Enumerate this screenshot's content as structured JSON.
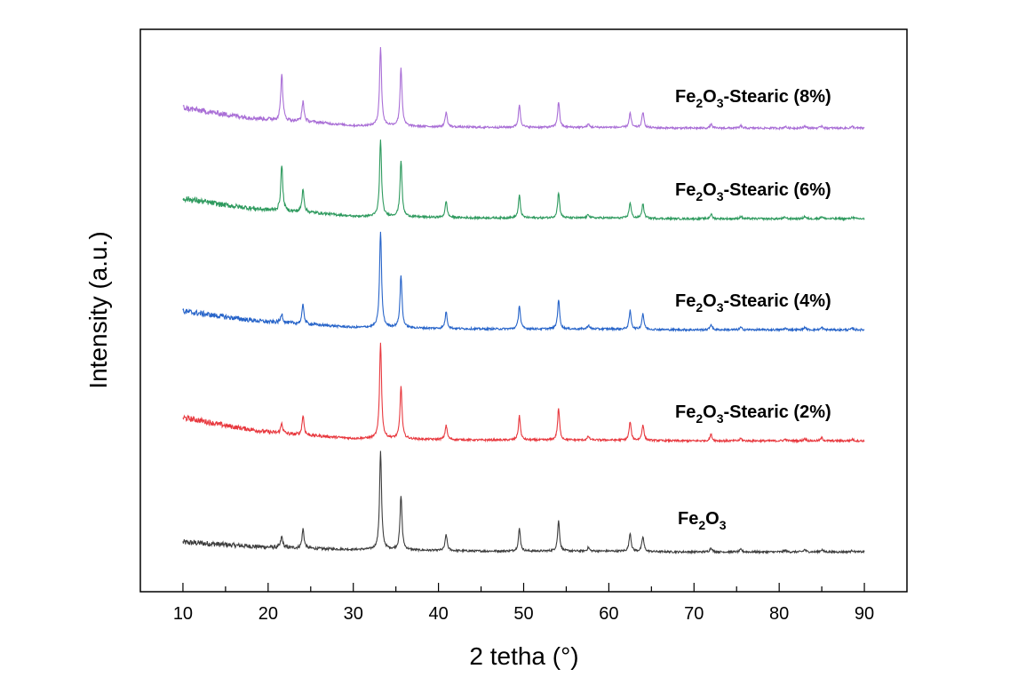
{
  "chart_data": {
    "type": "line",
    "xlabel": "2 tetha (°)",
    "ylabel": "Intensity (a.u.)",
    "xlim": [
      5,
      95
    ],
    "xticks": [
      10,
      20,
      30,
      40,
      50,
      60,
      70,
      80,
      90
    ],
    "yticks_shown": false,
    "grid": false,
    "legend": "inline-labels-right",
    "peak_positions": [
      21.6,
      24.1,
      33.2,
      35.6,
      40.9,
      49.5,
      54.1,
      57.6,
      62.5,
      64.0,
      72.0,
      75.5,
      80.7,
      83.0,
      85.0,
      88.6
    ],
    "series": [
      {
        "label": {
          "base": "Fe",
          "sub1": "2",
          "mid": "O",
          "sub2": "3",
          "suffix": ""
        },
        "color": "#3d3d3d",
        "x": [
          10,
          12,
          15,
          18,
          20,
          21.6,
          23,
          24.1,
          26,
          30,
          32.5,
          33.2,
          34.4,
          35.6,
          38,
          40.9,
          45,
          49.5,
          52,
          54.1,
          57.6,
          60,
          62.5,
          64.0,
          68,
          72.0,
          75.5,
          80.7,
          83.0,
          85.0,
          88.6,
          90
        ],
        "y": [
          0.28,
          0.26,
          0.22,
          0.18,
          0.16,
          0.42,
          0.14,
          0.62,
          0.12,
          0.1,
          0.1,
          2.55,
          0.1,
          1.45,
          0.08,
          0.48,
          0.06,
          0.62,
          0.06,
          0.82,
          0.15,
          0.06,
          0.52,
          0.42,
          0.04,
          0.15,
          0.1,
          0.08,
          0.1,
          0.1,
          0.08,
          0.04
        ]
      },
      {
        "label": {
          "base": "Fe",
          "sub1": "2",
          "mid": "O",
          "sub2": "3",
          "suffix": "-Stearic (2%)"
        },
        "color": "#e8393f",
        "x": [
          10,
          12,
          15,
          18,
          20,
          21.6,
          23,
          24.1,
          26,
          30,
          32.5,
          33.2,
          34.4,
          35.6,
          38,
          40.9,
          45,
          49.5,
          52,
          54.1,
          57.6,
          60,
          62.5,
          64.0,
          68,
          72.0,
          75.5,
          80.7,
          83.0,
          85.0,
          88.6,
          90
        ],
        "y": [
          0.62,
          0.55,
          0.42,
          0.32,
          0.26,
          0.48,
          0.2,
          0.68,
          0.16,
          0.1,
          0.1,
          2.5,
          0.1,
          1.4,
          0.08,
          0.44,
          0.06,
          0.66,
          0.06,
          0.85,
          0.15,
          0.06,
          0.52,
          0.45,
          0.04,
          0.2,
          0.1,
          0.08,
          0.1,
          0.12,
          0.08,
          0.04
        ]
      },
      {
        "label": {
          "base": "Fe",
          "sub1": "2",
          "mid": "O",
          "sub2": "3",
          "suffix": "-Stearic (4%)"
        },
        "color": "#2764c9",
        "x": [
          10,
          12,
          15,
          18,
          20,
          21.6,
          23,
          24.1,
          26,
          30,
          32.5,
          33.2,
          34.4,
          35.6,
          38,
          40.9,
          45,
          49.5,
          52,
          54.1,
          57.6,
          60,
          62.5,
          64.0,
          68,
          72.0,
          75.5,
          80.7,
          83.0,
          85.0,
          88.6,
          90
        ],
        "y": [
          0.5,
          0.45,
          0.36,
          0.28,
          0.24,
          0.45,
          0.2,
          0.68,
          0.16,
          0.1,
          0.1,
          2.5,
          0.1,
          1.4,
          0.08,
          0.5,
          0.06,
          0.65,
          0.06,
          0.8,
          0.16,
          0.06,
          0.52,
          0.45,
          0.04,
          0.18,
          0.1,
          0.08,
          0.1,
          0.1,
          0.08,
          0.04
        ]
      },
      {
        "label": {
          "base": "Fe",
          "sub1": "2",
          "mid": "O",
          "sub2": "3",
          "suffix": "-Stearic (6%)"
        },
        "color": "#2e9a5e",
        "x": [
          10,
          12,
          15,
          18,
          20,
          21.6,
          23,
          24.1,
          26,
          30,
          32.5,
          33.2,
          34.4,
          35.6,
          38,
          40.9,
          45,
          49.5,
          52,
          54.1,
          57.6,
          60,
          62.5,
          64.0,
          68,
          72.0,
          75.5,
          80.7,
          83.0,
          85.0,
          88.6,
          90
        ],
        "y": [
          0.55,
          0.48,
          0.38,
          0.3,
          0.26,
          1.38,
          0.22,
          0.8,
          0.18,
          0.1,
          0.1,
          2.0,
          0.1,
          1.5,
          0.08,
          0.48,
          0.06,
          0.62,
          0.06,
          0.7,
          0.15,
          0.06,
          0.45,
          0.42,
          0.04,
          0.16,
          0.1,
          0.08,
          0.1,
          0.1,
          0.08,
          0.04
        ]
      },
      {
        "label": {
          "base": "Fe",
          "sub1": "2",
          "mid": "O",
          "sub2": "3",
          "suffix": "-Stearic (8%)"
        },
        "color": "#a96ed6",
        "x": [
          10,
          12,
          15,
          18,
          20,
          21.6,
          23,
          24.1,
          26,
          30,
          32.5,
          33.2,
          34.4,
          35.6,
          38,
          40.9,
          45,
          49.5,
          52,
          54.1,
          57.6,
          60,
          62.5,
          64.0,
          68,
          72.0,
          75.5,
          80.7,
          83.0,
          85.0,
          88.6,
          90
        ],
        "y": [
          0.55,
          0.48,
          0.38,
          0.3,
          0.26,
          1.4,
          0.22,
          0.72,
          0.18,
          0.1,
          0.1,
          2.05,
          0.1,
          1.55,
          0.08,
          0.45,
          0.06,
          0.62,
          0.06,
          0.7,
          0.14,
          0.06,
          0.42,
          0.44,
          0.04,
          0.14,
          0.1,
          0.08,
          0.1,
          0.1,
          0.08,
          0.04
        ]
      }
    ]
  }
}
